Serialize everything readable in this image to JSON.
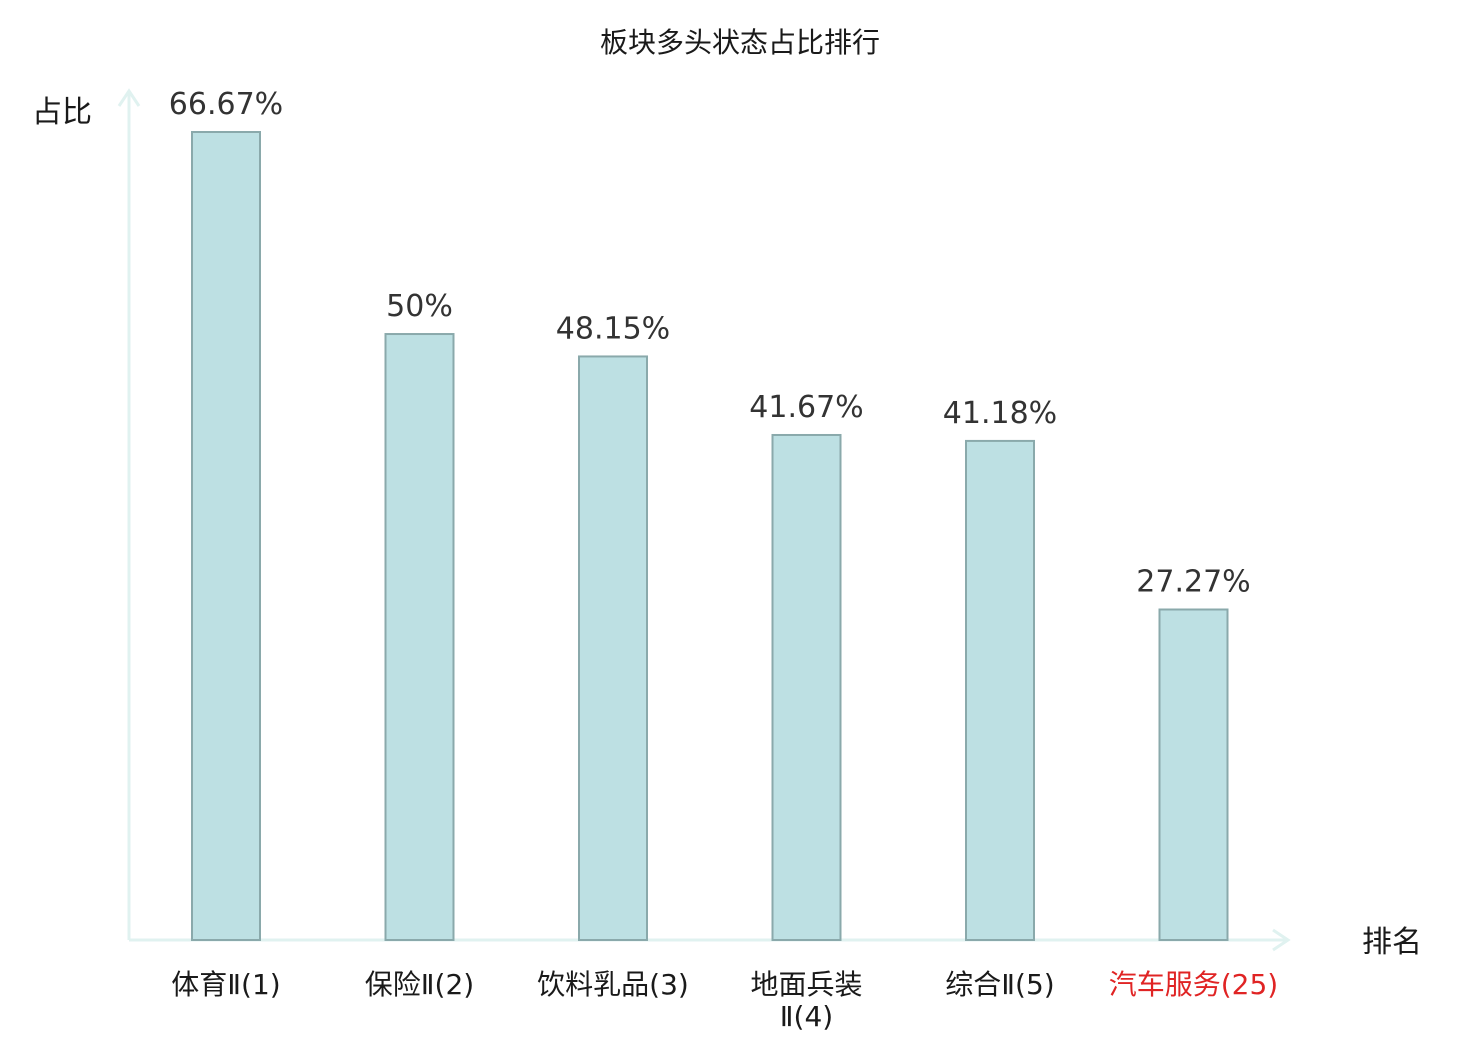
{
  "chart_data": {
    "type": "bar",
    "title": "板块多头状态占比排行",
    "ylabel": "占比",
    "xlabel": "排名",
    "categories": [
      [
        "体育Ⅱ(1)"
      ],
      [
        "保险Ⅱ(2)"
      ],
      [
        "饮料乳品(3)"
      ],
      [
        "地面兵装",
        "Ⅱ(4)"
      ],
      [
        "综合Ⅱ(5)"
      ],
      [
        "汽车服务(25)"
      ]
    ],
    "values": [
      66.67,
      50,
      48.15,
      41.67,
      41.18,
      27.27
    ],
    "value_labels": [
      "66.67%",
      "50%",
      "48.15%",
      "41.67%",
      "41.18%",
      "27.27%"
    ],
    "highlight_index": 5,
    "ylim": [
      0,
      70
    ],
    "grid": false,
    "colors": {
      "bar_fill": "#bde0e3",
      "bar_stroke": "#8aa9ab",
      "axis": "#e0f2f0",
      "label": "#1a1a1a",
      "highlight": "#e02424"
    }
  }
}
